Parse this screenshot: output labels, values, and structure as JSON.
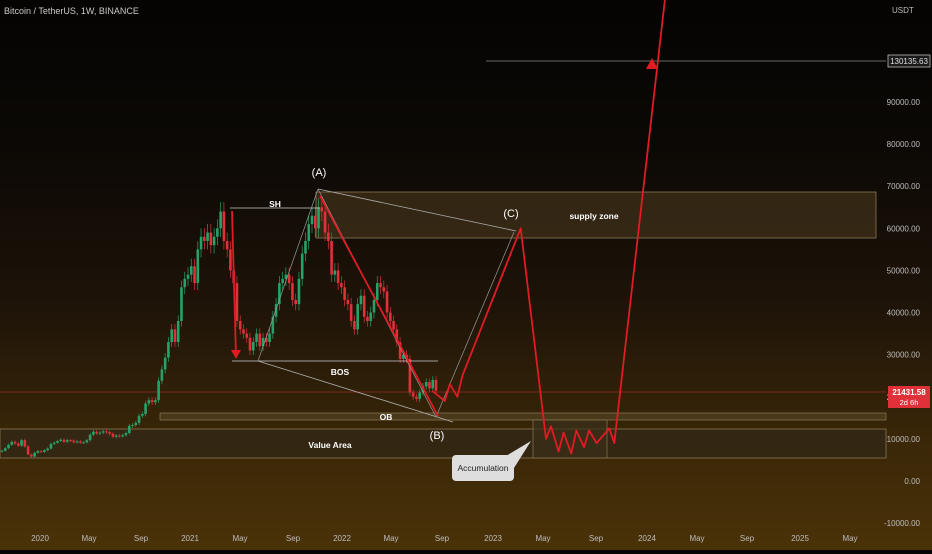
{
  "header": {
    "title": "Bitcoin / TetherUS, 1W, BINANCE",
    "price_unit": "USDT"
  },
  "price_badges": {
    "top_target": "130135.63",
    "current_price": "21431.58",
    "countdown": "2d 6h"
  },
  "colors": {
    "candle_up": "#26a269",
    "candle_down": "#e0313a",
    "path": "#e01b24",
    "zone_fill": "#3a2c16",
    "zone_stroke": "#8a7754",
    "current_badge": "#e0313a"
  },
  "annotations": {
    "label_a": "(A)",
    "label_b": "(B)",
    "label_c": "(C)",
    "sh": "SH",
    "bos": "BOS",
    "ob": "OB",
    "supply_zone": "supply zone",
    "value_area": "Value Area",
    "accumulation": "Accumulation"
  },
  "chart_data": {
    "type": "candlestick",
    "title": "Bitcoin / TetherUS, 1W, BINANCE",
    "ylabel": "USDT",
    "ylim": [
      -12000,
      110000
    ],
    "grid": false,
    "y_ticks": [
      "90000.00",
      "80000.00",
      "70000.00",
      "60000.00",
      "50000.00",
      "40000.00",
      "30000.00",
      "20000.00",
      "10000.00",
      "0.00",
      "-10000.00"
    ],
    "x_ticks": [
      "2020",
      "May",
      "Sep",
      "2021",
      "May",
      "Sep",
      "2022",
      "May",
      "Sep",
      "2023",
      "May",
      "Sep",
      "2024",
      "May",
      "Sep",
      "2025",
      "May"
    ],
    "candles_close": [
      7200,
      7800,
      8600,
      9300,
      8900,
      8400,
      9700,
      8200,
      6300,
      5800,
      6700,
      7100,
      6900,
      7300,
      7700,
      8800,
      9100,
      9500,
      9800,
      9300,
      9700,
      9600,
      9200,
      9400,
      9100,
      9200,
      9700,
      11000,
      11700,
      11300,
      11500,
      11800,
      11600,
      11200,
      10500,
      10800,
      10600,
      10900,
      11400,
      13100,
      13300,
      13800,
      15500,
      15900,
      18400,
      19200,
      18700,
      19200,
      23800,
      26500,
      29300,
      33000,
      36000,
      33000,
      38000,
      46000,
      48000,
      49000,
      51000,
      47000,
      55000,
      58000,
      57000,
      59000,
      56000,
      58000,
      60000,
      64000,
      57000,
      55000,
      50000,
      47000,
      38000,
      36000,
      35000,
      34000,
      31000,
      33000,
      35000,
      32000,
      34000,
      33000,
      35000,
      39000,
      42000,
      47000,
      48000,
      49000,
      47000,
      43000,
      42000,
      48000,
      54000,
      57000,
      61000,
      63000,
      60000,
      65000,
      64000,
      59000,
      57000,
      49000,
      50000,
      47000,
      46000,
      43000,
      42000,
      38000,
      36000,
      42000,
      44000,
      39000,
      38000,
      40000,
      43000,
      47000,
      46000,
      45000,
      40000,
      38000,
      36000,
      33000,
      29000,
      30000,
      29000,
      21000,
      20000,
      19500,
      21000,
      22500,
      23500,
      22000,
      24000,
      21431
    ],
    "forecast_path": [
      {
        "date": "2022-08",
        "price": 21431
      },
      {
        "date": "2022-09",
        "price": 19000
      },
      {
        "date": "2022-09",
        "price": 23000
      },
      {
        "date": "2022-10",
        "price": 20000
      },
      {
        "date": "2022-10",
        "price": 25000
      },
      {
        "date": "2023-03",
        "price": 60000
      },
      {
        "date": "2023-05",
        "price": 10000
      },
      {
        "date": "2023-05",
        "price": 13000
      },
      {
        "date": "2023-06",
        "price": 7000
      },
      {
        "date": "2023-06",
        "price": 11500
      },
      {
        "date": "2023-07",
        "price": 6500
      },
      {
        "date": "2023-07",
        "price": 12000
      },
      {
        "date": "2023-08",
        "price": 8000
      },
      {
        "date": "2023-08",
        "price": 12000
      },
      {
        "date": "2023-09",
        "price": 9000
      },
      {
        "date": "2023-10",
        "price": 12500
      },
      {
        "date": "2023-10",
        "price": 9000
      },
      {
        "date": "2024-03",
        "price": 130135.63
      }
    ],
    "levels": {
      "current": 21431.58,
      "target": 130135.63,
      "bos": 29000,
      "sh": 65000
    },
    "zones": {
      "supply_zone": [
        58000,
        69000
      ],
      "value_area": [
        5000,
        12500
      ],
      "ob": [
        15000,
        16500
      ]
    }
  }
}
